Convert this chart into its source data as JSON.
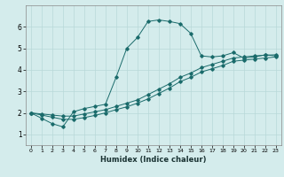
{
  "xlabel": "Humidex (Indice chaleur)",
  "bg_color": "#d4ecec",
  "grid_color": "#b8d8d8",
  "line_color": "#1a6b6b",
  "xlim": [
    -0.5,
    23.5
  ],
  "ylim": [
    0.5,
    7.0
  ],
  "yticks": [
    1,
    2,
    3,
    4,
    5,
    6
  ],
  "xticks": [
    0,
    1,
    2,
    3,
    4,
    5,
    6,
    7,
    8,
    9,
    10,
    11,
    12,
    13,
    14,
    15,
    16,
    17,
    18,
    19,
    20,
    21,
    22,
    23
  ],
  "line1_x": [
    0,
    1,
    2,
    3,
    4,
    5,
    6,
    7,
    8,
    9,
    10,
    11,
    12,
    13,
    14,
    15,
    16,
    17,
    18,
    19,
    20,
    21,
    22,
    23
  ],
  "line1_y": [
    2.0,
    1.75,
    1.5,
    1.35,
    2.05,
    2.2,
    2.3,
    2.4,
    3.65,
    5.0,
    5.5,
    6.25,
    6.32,
    6.25,
    6.15,
    5.7,
    4.65,
    4.6,
    4.65,
    4.8,
    4.55,
    4.6,
    4.7,
    4.65
  ],
  "line2_x": [
    0,
    1,
    2,
    3,
    4,
    5,
    6,
    7,
    8,
    9,
    10,
    11,
    12,
    13,
    14,
    15,
    16,
    17,
    18,
    19,
    20,
    21,
    22,
    23
  ],
  "line2_y": [
    2.0,
    1.95,
    1.9,
    1.85,
    1.85,
    1.95,
    2.05,
    2.15,
    2.3,
    2.45,
    2.6,
    2.85,
    3.1,
    3.35,
    3.65,
    3.85,
    4.1,
    4.25,
    4.4,
    4.55,
    4.6,
    4.65,
    4.68,
    4.7
  ],
  "line3_x": [
    0,
    1,
    2,
    3,
    4,
    5,
    6,
    7,
    8,
    9,
    10,
    11,
    12,
    13,
    14,
    15,
    16,
    17,
    18,
    19,
    20,
    21,
    22,
    23
  ],
  "line3_y": [
    2.0,
    1.9,
    1.8,
    1.7,
    1.7,
    1.78,
    1.88,
    2.0,
    2.15,
    2.28,
    2.45,
    2.65,
    2.9,
    3.15,
    3.45,
    3.65,
    3.9,
    4.05,
    4.2,
    4.4,
    4.45,
    4.5,
    4.55,
    4.6
  ]
}
